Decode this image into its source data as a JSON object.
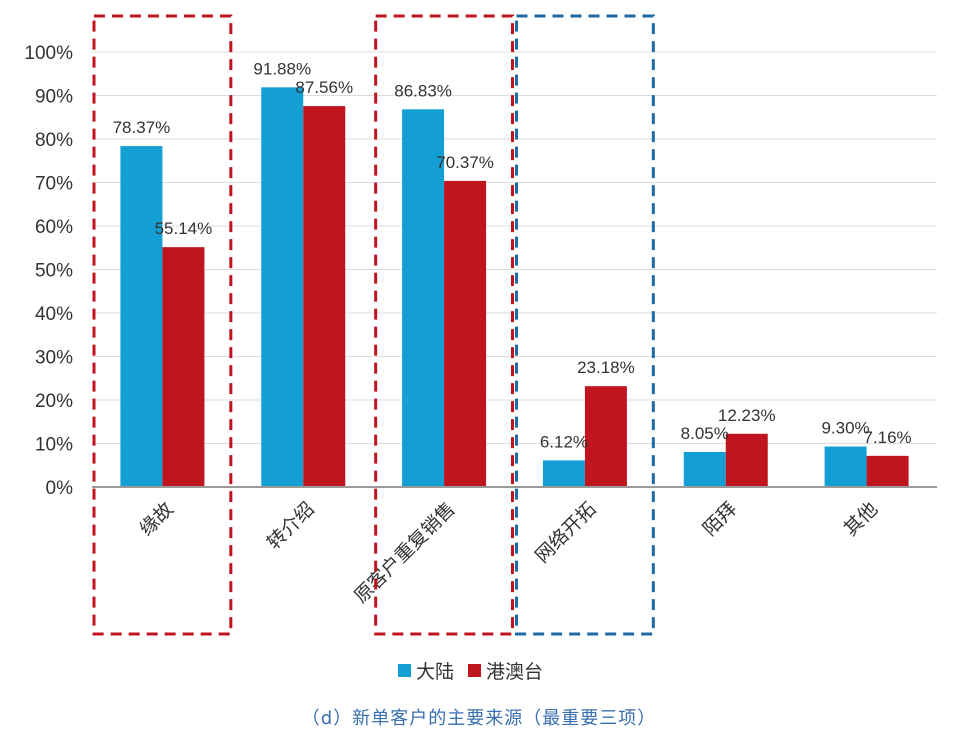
{
  "chart_data": {
    "type": "bar",
    "categories": [
      "缘故",
      "转介绍",
      "原客户重复销售",
      "网络开拓",
      "陌拜",
      "其他"
    ],
    "series": [
      {
        "name": "大陆",
        "color": "#149fd4",
        "values": [
          78.37,
          91.88,
          86.83,
          6.12,
          8.05,
          9.3
        ],
        "labels": [
          "78.37%",
          "91.88%",
          "86.83%",
          "6.12%",
          "8.05%",
          "9.30%"
        ]
      },
      {
        "name": "港澳台",
        "color": "#c0151f",
        "values": [
          55.14,
          87.56,
          70.37,
          23.18,
          12.23,
          7.16
        ],
        "labels": [
          "55.14%",
          "87.56%",
          "70.37%",
          "23.18%",
          "12.23%",
          "7.16%"
        ]
      }
    ],
    "yticks": [
      "0%",
      "10%",
      "20%",
      "30%",
      "40%",
      "50%",
      "60%",
      "70%",
      "80%",
      "90%",
      "100%"
    ],
    "ylim": [
      0,
      100
    ],
    "grid": true,
    "legend_position": "bottom",
    "highlight_boxes": [
      {
        "color": "#c0151f",
        "categories": [
          "缘故"
        ]
      },
      {
        "color": "#c0151f",
        "categories": [
          "原客户重复销售"
        ]
      },
      {
        "color": "#1f6aa5",
        "categories": [
          "网络开拓"
        ]
      }
    ]
  },
  "caption": "（d）新单客户的主要来源（最重要三项）"
}
